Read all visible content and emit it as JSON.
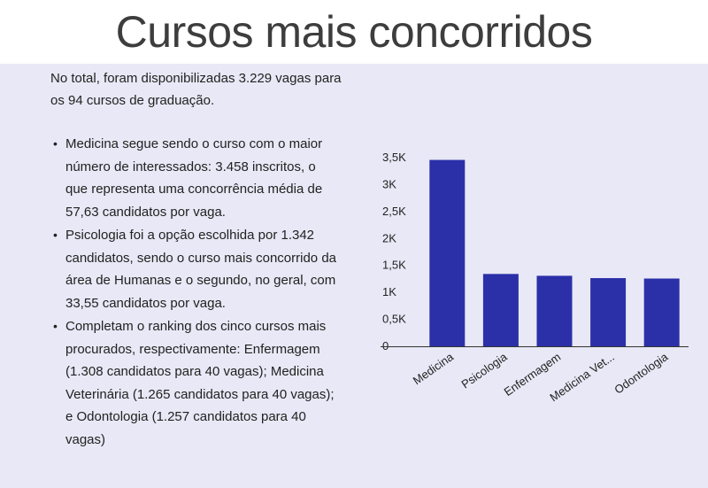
{
  "header": {
    "title": "Cursos mais concorridos"
  },
  "intro": "No total, foram disponibilizadas 3.229 vagas para os 94 cursos de graduação.",
  "bullets": [
    {
      "text": "Medicina segue sendo o curso com o maior número de interessados: 3.458 inscritos, o que representa uma concorrência média de 57,63 candidatos por vaga."
    },
    {
      "text": "Psicologia foi a opção escolhida por 1.342 candidatos, sendo o curso mais concorrido da área de Humanas e o segundo, no geral, com 33,55 candidatos por vaga."
    },
    {
      "text": "Completam o ranking dos cinco cursos mais procurados, respectivamente: Enfermagem (1.308 candidatos para 40 vagas); Medicina Veterinária (1.265 candidatos para 40 vagas); e Odontologia (1.257 candidatos para 40 vagas)"
    }
  ],
  "bullet_glyph": "•",
  "chart_data": {
    "type": "bar",
    "categories": [
      "Medicina",
      "Psicologia",
      "Enfermagem",
      "Medicina Vet...",
      "Odontologia"
    ],
    "values": [
      3458,
      1342,
      1308,
      1265,
      1257
    ],
    "ylim": [
      0,
      3500
    ],
    "yticks": [
      0,
      500,
      1000,
      1500,
      2000,
      2500,
      3000,
      3500
    ],
    "ytick_labels": [
      "0",
      "0,5K",
      "1K",
      "1,5K",
      "2K",
      "2,5K",
      "3K",
      "3,5K"
    ],
    "bar_color": "#2b30a8",
    "grid": false,
    "legend": "none",
    "title": "",
    "xlabel": "",
    "ylabel": ""
  }
}
